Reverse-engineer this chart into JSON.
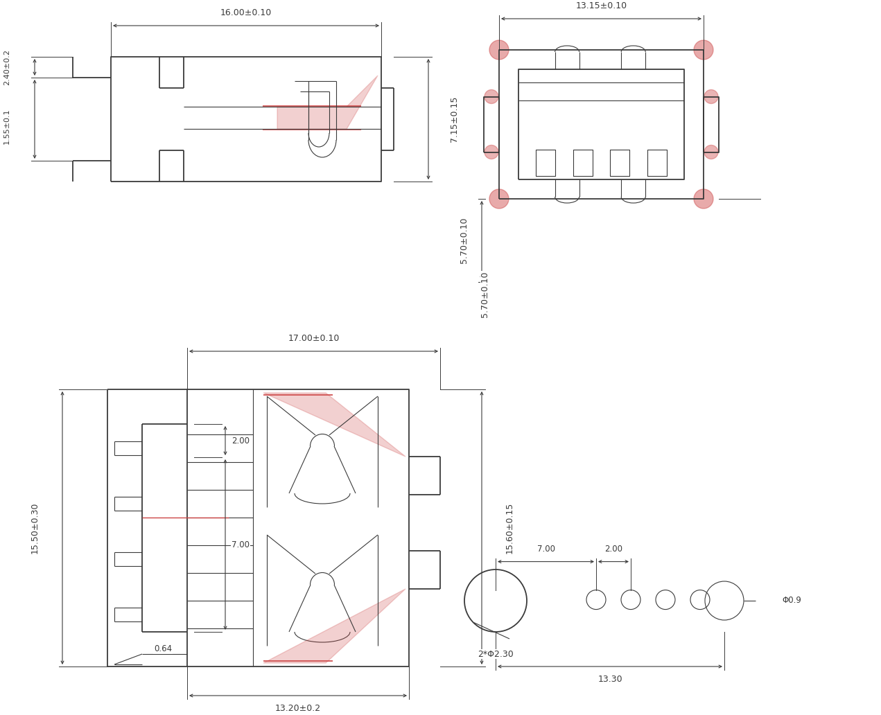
{
  "bg_color": "#ffffff",
  "line_color": "#3a3a3a",
  "dim_color": "#3a3a3a",
  "red_color": "#cc4444",
  "views": {
    "side_view": {
      "dims": {
        "width_top": "16.00±0.10",
        "height_right": "7.15±0.15",
        "dim_left1": "2.40±0.2",
        "dim_left2": "1.55±0.1"
      }
    },
    "front_view": {
      "dims": {
        "width_top": "13.15±0.10",
        "height_right": "5.70±0.10"
      }
    },
    "top_view": {
      "dims": {
        "width_top": "17.00±0.10",
        "width_bottom": "13.20±0.2",
        "height_right": "15.60±0.15",
        "height_left": "15.50±0.30",
        "dim_inner1": "2.00",
        "dim_inner2": "7.00",
        "dim_inner3": "0.64"
      }
    },
    "hole_view": {
      "dims": {
        "width": "13.30",
        "dim_h1": "7.00",
        "dim_h2": "2.00",
        "hole_dia": "2*Φ2.30",
        "small_hole": "Φ0.9"
      }
    }
  }
}
